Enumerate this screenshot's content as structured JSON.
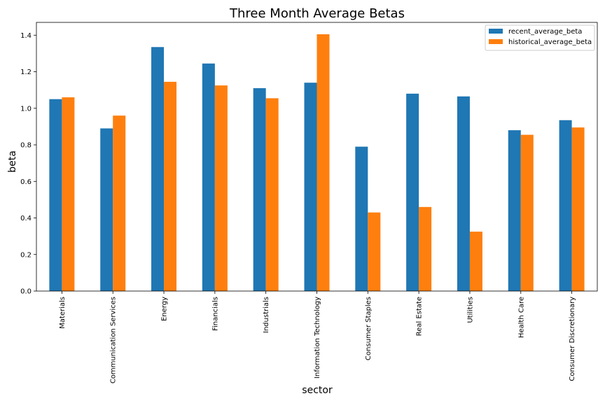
{
  "chart_data": {
    "type": "bar",
    "title": "Three Month Average Betas",
    "xlabel": "sector",
    "ylabel": "beta",
    "ylim": [
      0,
      1.47
    ],
    "yticks": [
      "0.0",
      "0.2",
      "0.4",
      "0.6",
      "0.8",
      "1.0",
      "1.2",
      "1.4"
    ],
    "categories": [
      "Materials",
      "Communication Services",
      "Energy",
      "Financials",
      "Industrials",
      "Information Technology",
      "Consumer Staples",
      "Real Estate",
      "Utilities",
      "Health Care",
      "Consumer Discretionary"
    ],
    "series": [
      {
        "name": "recent_average_beta",
        "color": "#1f77b4",
        "values": [
          1.05,
          0.89,
          1.335,
          1.245,
          1.11,
          1.14,
          0.79,
          1.08,
          1.065,
          0.88,
          0.935
        ]
      },
      {
        "name": "historical_average_beta",
        "color": "#ff7f0e",
        "values": [
          1.06,
          0.96,
          1.145,
          1.125,
          1.055,
          1.405,
          0.43,
          0.46,
          0.325,
          0.855,
          0.895
        ]
      }
    ],
    "grid": false,
    "legend": "top-right"
  }
}
